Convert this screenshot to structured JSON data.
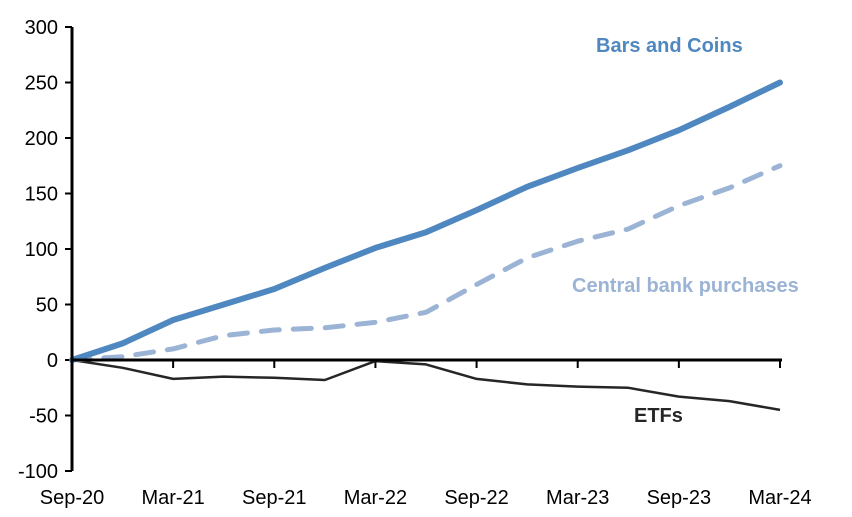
{
  "chart_data": {
    "type": "line",
    "title": "",
    "xlabel": "",
    "ylabel": "",
    "ylim": [
      -100,
      300
    ],
    "yticks": [
      "-100",
      "-50",
      "0",
      "50",
      "100",
      "150",
      "200",
      "250",
      "300"
    ],
    "x_tick_labels": [
      "Sep-20",
      "Mar-21",
      "Sep-21",
      "Mar-22",
      "Sep-22",
      "Mar-23",
      "Sep-23",
      "Mar-24"
    ],
    "x": [
      "Sep-20",
      "Dec-20",
      "Mar-21",
      "Jun-21",
      "Sep-21",
      "Dec-21",
      "Mar-22",
      "Jun-22",
      "Sep-22",
      "Dec-22",
      "Mar-23",
      "Jun-23",
      "Sep-23",
      "Dec-23",
      "Mar-24"
    ],
    "grid": false,
    "series": [
      {
        "name": "Bars and Coins",
        "color": "#4f88c0",
        "style": "solid-thick",
        "values": [
          0,
          15,
          36,
          50,
          64,
          83,
          101,
          115,
          135,
          156,
          173,
          189,
          207,
          228,
          250
        ]
      },
      {
        "name": "Central bank purchases",
        "color": "#9bb3d4",
        "style": "dashed",
        "values": [
          0,
          3,
          10,
          22,
          27,
          29,
          34,
          43,
          68,
          92,
          107,
          118,
          139,
          155,
          175
        ]
      },
      {
        "name": "ETFs",
        "color": "#262626",
        "style": "solid-thin",
        "values": [
          0,
          -7,
          -17,
          -15,
          -16,
          -18,
          -1,
          -4,
          -17,
          -22,
          -24,
          -25,
          -33,
          -37,
          -45
        ]
      }
    ]
  }
}
